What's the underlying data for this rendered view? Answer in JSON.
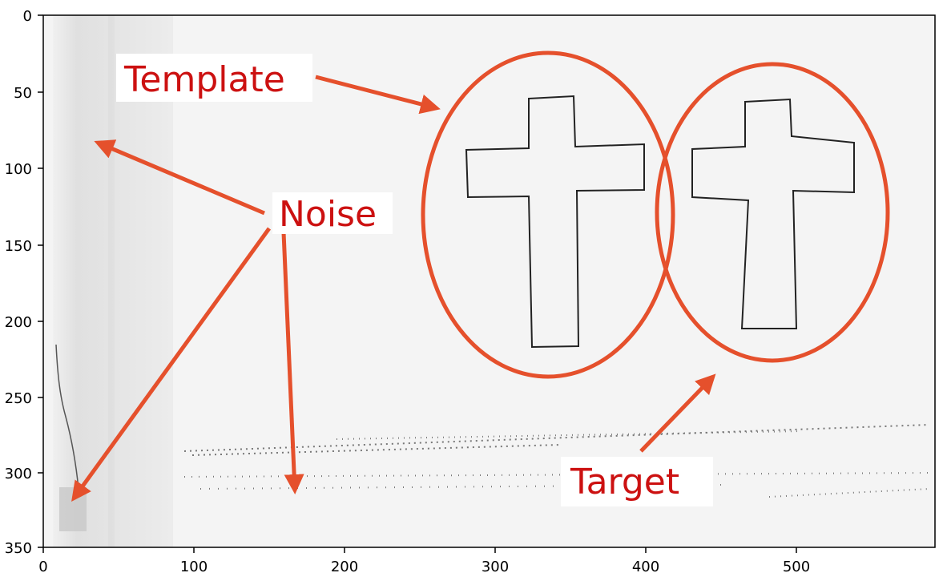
{
  "axes": {
    "x_ticks": [
      "0",
      "100",
      "200",
      "300",
      "400",
      "500"
    ],
    "y_ticks": [
      "0",
      "50",
      "100",
      "150",
      "200",
      "250",
      "300",
      "350"
    ]
  },
  "annotations": {
    "template": "Template",
    "noise": "Noise",
    "target": "Target"
  },
  "colors": {
    "annotation_stroke": "#e5502c",
    "annotation_text": "#cc1111",
    "image_background": "#f4f4f4",
    "drawing_ink": "#222222"
  }
}
